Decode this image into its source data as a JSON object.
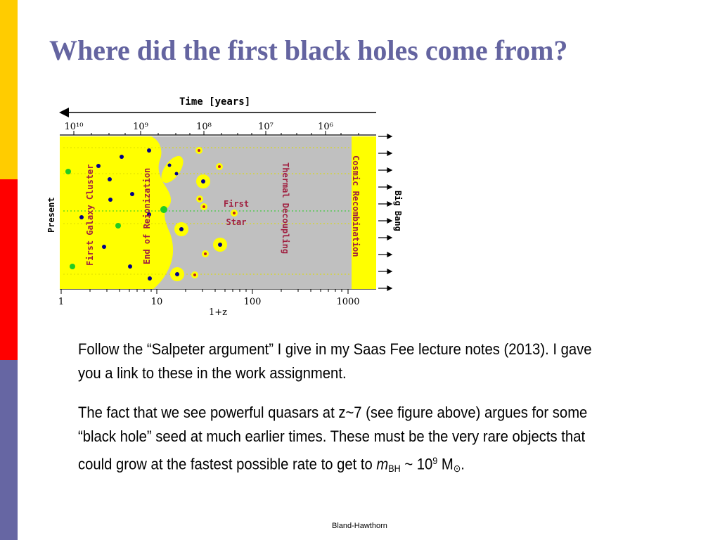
{
  "slide": {
    "title": "Where did the first black holes come from?",
    "footer": "Bland-Hawthorn"
  },
  "colors": {
    "title": "#6464a0",
    "strip_top": "#ffcc00",
    "strip_mid": "#ff0000",
    "strip_bottom": "#6666a3",
    "figure_yellow": "#ffff00",
    "figure_gray": "#c0c0c0",
    "label_red": "#a02040",
    "galaxy_blue": "#00008b",
    "galaxy_green": "#22cc22"
  },
  "figure": {
    "time_axis_label": "Time [years]",
    "time_ticks": [
      "10¹⁰",
      "10⁹",
      "10⁸",
      "10⁷",
      "10⁶"
    ],
    "redshift_ticks": [
      "1",
      "10",
      "100",
      "1000"
    ],
    "redshift_label": "1+z",
    "left_label": "Present",
    "right_label": "Big Bang",
    "labels": {
      "first_galaxy_cluster": "First Galaxy Cluster",
      "end_of_reionization": "End of Reionization",
      "first_star_line1": "First",
      "first_star_line2": "Star",
      "thermal_decoupling": "Thermal Decoupling",
      "cosmic_recombination": "Cosmic Recombination"
    }
  },
  "body": {
    "p1": "Follow the “Salpeter argument” I give in my Saas Fee lecture notes (2013). I gave you a link to these in the work assignment.",
    "p2_text": "The fact that we see powerful quasars at z~7 (see figure above) argues for some “black hole” seed at much earlier times. These must be the very rare objects that could grow at the fastest possible rate to get to ",
    "p2_m": "m",
    "p2_bh": "BH",
    "p2_tilde": " ~ 10",
    "p2_exp": "9",
    "p2_msun": " M",
    "p2_sun": "⊙",
    "p2_end": "."
  }
}
